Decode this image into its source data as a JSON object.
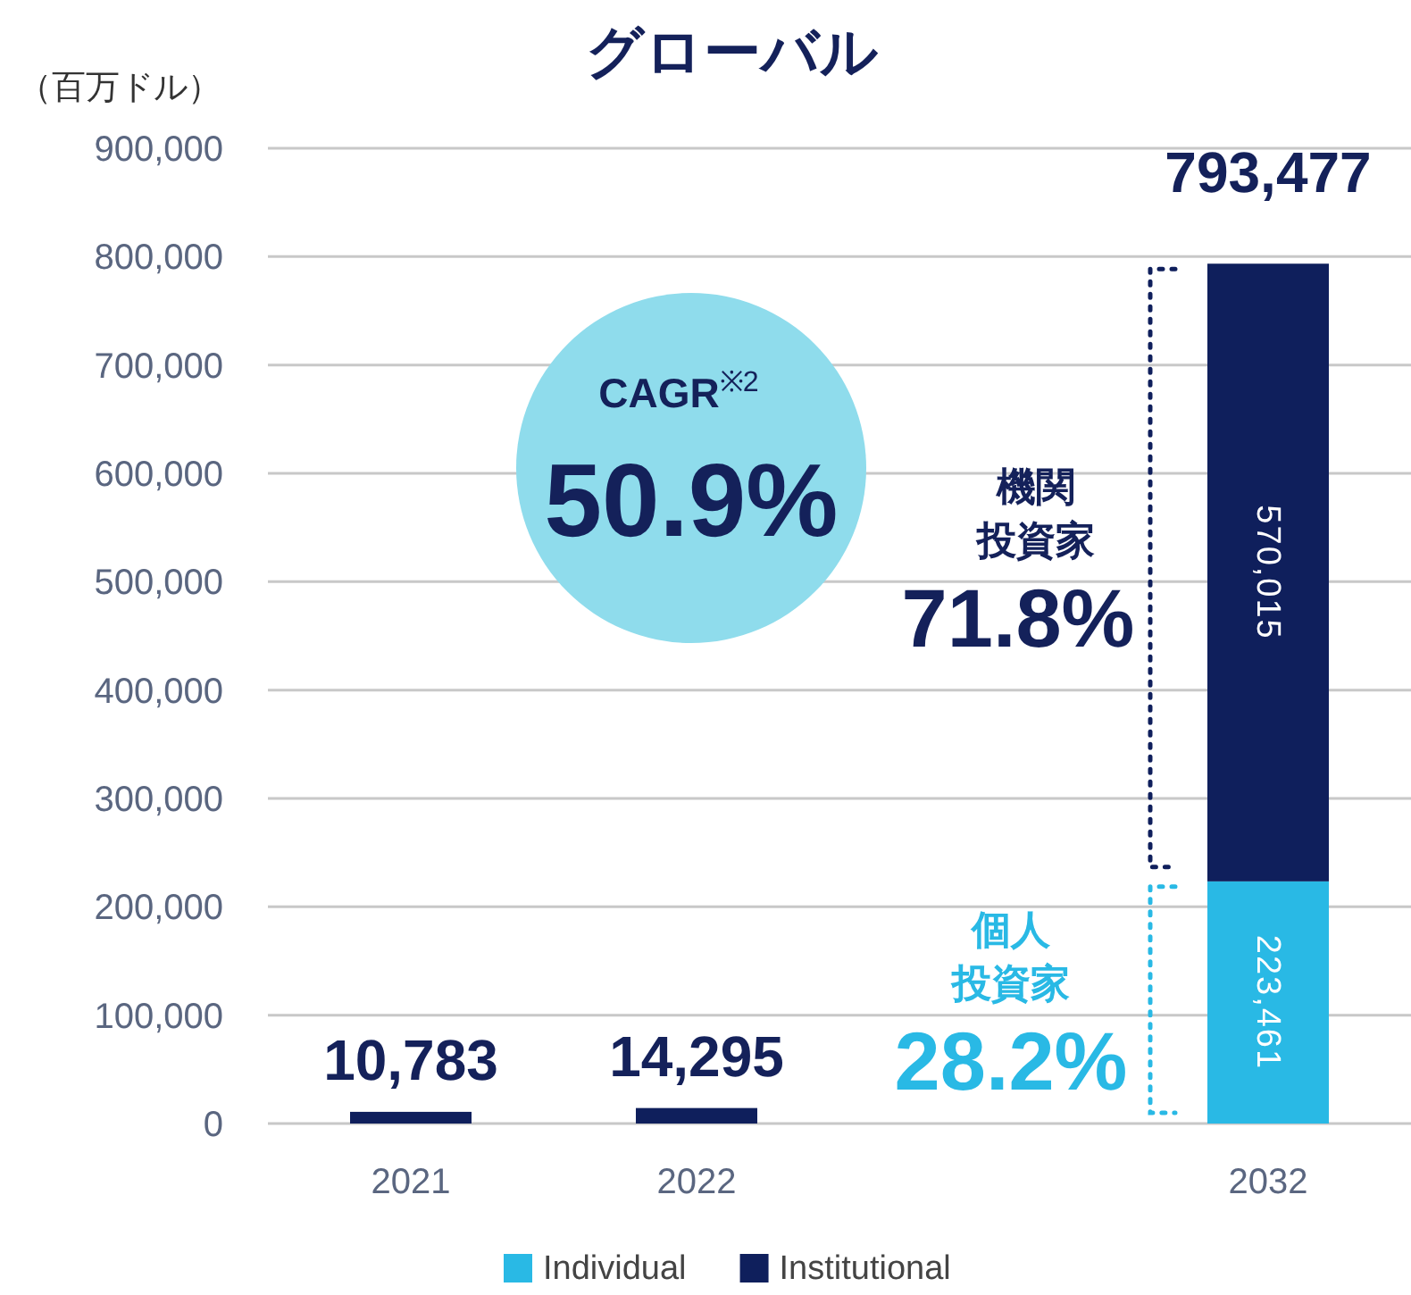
{
  "chart_data": {
    "type": "bar",
    "title": "グローバル",
    "ylabel": "（百万ドル）",
    "stacked": true,
    "grid": "y",
    "legend": "bottom",
    "categories": [
      "2021",
      "2022",
      null,
      "2032"
    ],
    "series": [
      {
        "name": "Individual",
        "color": "#29b9e5",
        "values": [
          null,
          null,
          null,
          223461
        ],
        "value_labels": [
          null,
          null,
          null,
          "223,461"
        ]
      },
      {
        "name": "Institutional",
        "color": "#0f1f5c",
        "values": [
          10783,
          14295,
          null,
          570015
        ],
        "value_labels": [
          null,
          null,
          null,
          "570,015"
        ]
      }
    ],
    "totals": [
      "10,783",
      "14,295",
      null,
      "793,477"
    ],
    "ylim": [
      0,
      900000
    ],
    "yticks": [
      0,
      {
        "value": 100000,
        "label": "100,000"
      },
      {
        "value": 200000,
        "label": "200,000"
      },
      {
        "value": 300000,
        "label": "300,000"
      },
      {
        "value": 400000,
        "label": "400,000"
      },
      {
        "value": 500000,
        "label": "500,000"
      },
      {
        "value": 600000,
        "label": "600,000"
      },
      {
        "value": 700000,
        "label": "700,000"
      },
      {
        "value": 800000,
        "label": "800,000"
      },
      {
        "value": 900000,
        "label": "900,000"
      }
    ],
    "annotations": [
      "CAGR$^{※2}$",
      "50.9%",
      "機関",
      "投資家",
      "71.8%",
      "個人",
      "投資家",
      "28.2%"
    ]
  }
}
